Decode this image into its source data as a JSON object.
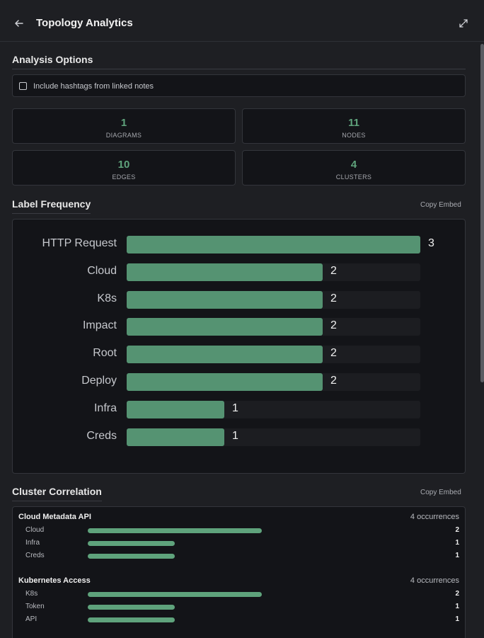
{
  "header": {
    "title": "Topology Analytics"
  },
  "options": {
    "title": "Analysis Options",
    "include_hashtags_label": "Include hashtags from linked notes",
    "include_hashtags_checked": false
  },
  "stats": [
    {
      "value": "1",
      "label": "DIAGRAMS"
    },
    {
      "value": "11",
      "label": "NODES"
    },
    {
      "value": "10",
      "label": "EDGES"
    },
    {
      "value": "4",
      "label": "CLUSTERS"
    }
  ],
  "label_frequency": {
    "title": "Label Frequency",
    "copy_label": "Copy Embed",
    "chart_data": {
      "type": "bar",
      "orientation": "horizontal",
      "categories": [
        "HTTP Request",
        "Cloud",
        "K8s",
        "Impact",
        "Root",
        "Deploy",
        "Infra",
        "Creds"
      ],
      "values": [
        3,
        2,
        2,
        2,
        2,
        2,
        1,
        1
      ],
      "xlim": [
        0,
        3
      ]
    }
  },
  "cluster_correlation": {
    "title": "Cluster Correlation",
    "copy_label": "Copy Embed",
    "max_value": 2,
    "clusters": [
      {
        "name": "Cloud Metadata API",
        "occurrences": "4 occurrences",
        "items": [
          {
            "label": "Cloud",
            "value": 2
          },
          {
            "label": "Infra",
            "value": 1
          },
          {
            "label": "Creds",
            "value": 1
          }
        ]
      },
      {
        "name": "Kubernetes Access",
        "occurrences": "4 occurrences",
        "items": [
          {
            "label": "K8s",
            "value": 2
          },
          {
            "label": "Token",
            "value": 1
          },
          {
            "label": "API",
            "value": 1
          }
        ]
      }
    ]
  },
  "colors": {
    "accent": "#5fa37c",
    "bar": "#559372",
    "background": "#1e1f23",
    "card": "#131418"
  }
}
